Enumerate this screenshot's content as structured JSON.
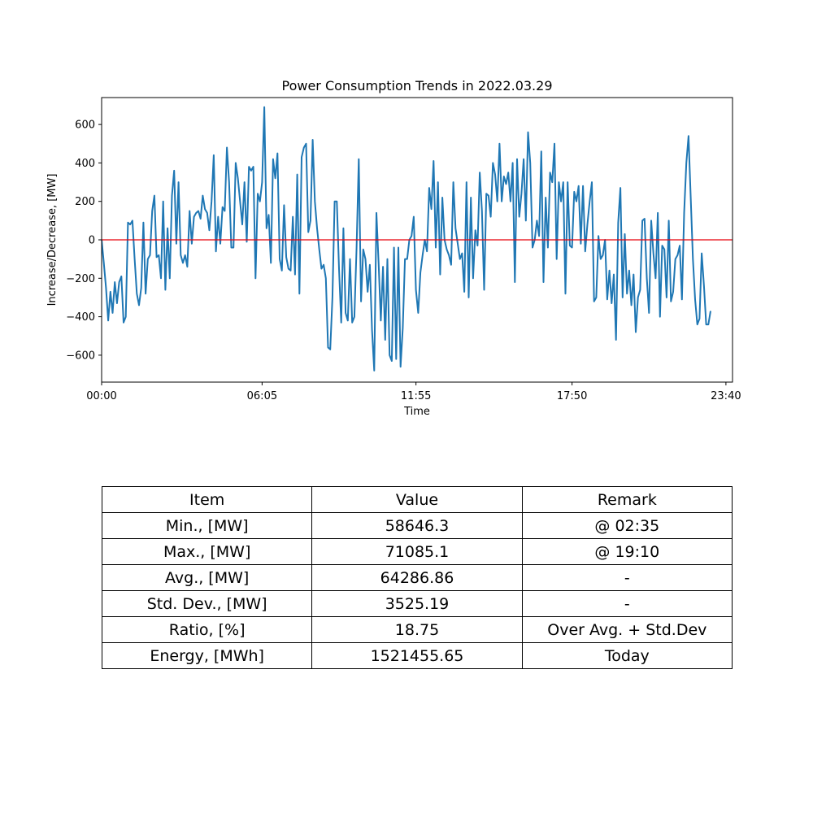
{
  "chart_data": {
    "type": "line",
    "title": "Power Consumption Trends in 2022.03.29",
    "xlabel": "Time",
    "ylabel": "Increase/Decrease, [MW]",
    "xlim": [
      0,
      1435
    ],
    "ylim": [
      -740,
      740
    ],
    "xticks": [
      {
        "value": 0,
        "label": "00:00"
      },
      {
        "value": 365,
        "label": "06:05"
      },
      {
        "value": 715,
        "label": "11:55"
      },
      {
        "value": 1070,
        "label": "17:50"
      },
      {
        "value": 1420,
        "label": "23:40"
      }
    ],
    "yticks": [
      -600,
      -400,
      -200,
      0,
      200,
      400,
      600
    ],
    "reference_line": {
      "y": 0,
      "color": "#e8000b"
    },
    "series": [
      {
        "name": "Increase/Decrease",
        "color": "#1f77b4",
        "x_start": 0,
        "x_step": 5,
        "values": [
          0,
          -120,
          -250,
          -420,
          -270,
          -380,
          -220,
          -330,
          -220,
          -190,
          -430,
          -400,
          90,
          80,
          100,
          -100,
          -280,
          -340,
          -250,
          90,
          -280,
          -100,
          -80,
          150,
          230,
          -90,
          -80,
          -200,
          200,
          -260,
          60,
          -200,
          230,
          360,
          -20,
          300,
          -80,
          -120,
          -80,
          -140,
          150,
          -20,
          120,
          140,
          150,
          110,
          230,
          160,
          140,
          50,
          200,
          440,
          -60,
          120,
          -20,
          170,
          150,
          480,
          300,
          -40,
          -40,
          400,
          320,
          200,
          80,
          300,
          -10,
          380,
          360,
          380,
          -200,
          240,
          200,
          300,
          690,
          60,
          130,
          -120,
          420,
          320,
          450,
          -100,
          -160,
          180,
          -90,
          -150,
          -160,
          120,
          -180,
          340,
          -280,
          430,
          480,
          500,
          40,
          100,
          520,
          200,
          60,
          -50,
          -150,
          -130,
          -200,
          -560,
          -570,
          -300,
          200,
          200,
          -150,
          -430,
          60,
          -380,
          -420,
          -100,
          -430,
          -400,
          -40,
          420,
          -320,
          -50,
          -100,
          -270,
          -130,
          -470,
          -680,
          140,
          -120,
          -420,
          -140,
          -520,
          -100,
          -600,
          -630,
          -40,
          -620,
          -40,
          -660,
          -460,
          -100,
          -100,
          0,
          20,
          120,
          -260,
          -380,
          -170,
          -80,
          0,
          -60,
          270,
          160,
          410,
          -40,
          300,
          -180,
          220,
          0,
          -50,
          -80,
          -130,
          300,
          60,
          -20,
          -100,
          -70,
          -270,
          300,
          -300,
          220,
          -200,
          50,
          -30,
          350,
          150,
          -260,
          240,
          230,
          120,
          400,
          340,
          200,
          500,
          200,
          330,
          290,
          350,
          200,
          400,
          -220,
          420,
          120,
          240,
          420,
          100,
          560,
          400,
          -40,
          0,
          100,
          20,
          460,
          -220,
          220,
          -40,
          350,
          300,
          500,
          -100,
          300,
          200,
          300,
          -280,
          300,
          -30,
          -40,
          250,
          200,
          280,
          -20,
          280,
          -60,
          80,
          200,
          300,
          -320,
          -300,
          20,
          -100,
          -80,
          0,
          -310,
          -160,
          -330,
          -180,
          -520,
          90,
          270,
          -300,
          30,
          -280,
          -160,
          -340,
          -180,
          -480,
          -300,
          -260,
          100,
          110,
          -200,
          -380,
          100,
          -70,
          -200,
          140,
          -400,
          -30,
          -50,
          -300,
          100,
          -320,
          -270,
          -100,
          -80,
          -30,
          -310,
          140,
          400,
          540,
          220,
          -100,
          -310,
          -440,
          -410,
          -70,
          -240,
          -440,
          -440,
          -370
        ]
      }
    ]
  },
  "table": {
    "headers": [
      "Item",
      "Value",
      "Remark"
    ],
    "rows": [
      [
        "Min., [MW]",
        "58646.3",
        "@ 02:35"
      ],
      [
        "Max., [MW]",
        "71085.1",
        "@ 19:10"
      ],
      [
        "Avg., [MW]",
        "64286.86",
        "-"
      ],
      [
        "Std. Dev., [MW]",
        "3525.19",
        "-"
      ],
      [
        "Ratio, [%]",
        "18.75",
        "Over Avg. + Std.Dev"
      ],
      [
        "Energy, [MWh]",
        "1521455.65",
        "Today"
      ]
    ]
  }
}
